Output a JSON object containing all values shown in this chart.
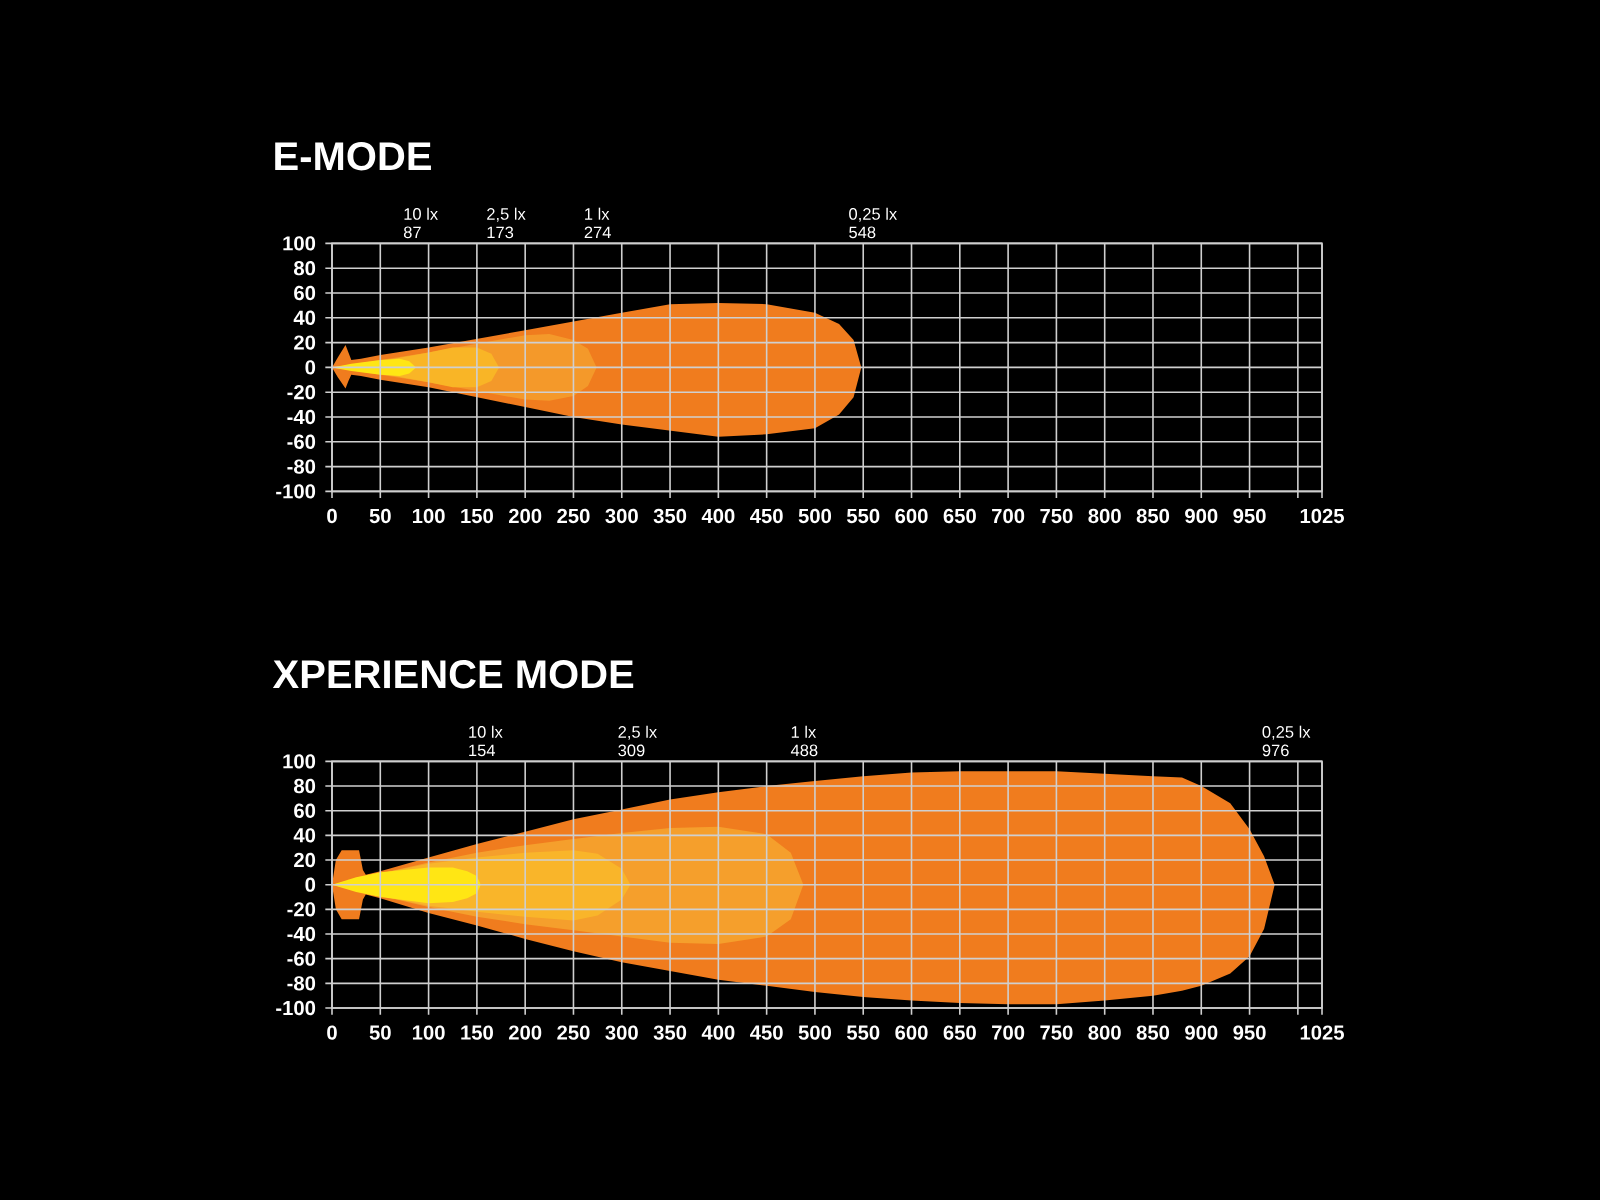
{
  "chart_data": [
    {
      "type": "area",
      "title": "E-MODE",
      "xlim": [
        0,
        1025
      ],
      "ylim": [
        -100,
        100
      ],
      "xticks": [
        0,
        50,
        100,
        150,
        200,
        250,
        300,
        350,
        400,
        450,
        500,
        550,
        600,
        650,
        700,
        750,
        800,
        850,
        900,
        950,
        {
          "value": 1000,
          "label": null
        },
        1025
      ],
      "yticks": [
        -100,
        -80,
        -60,
        -40,
        -20,
        0,
        20,
        40,
        60,
        80,
        100
      ],
      "grid": true,
      "x2lim": [
        0,
        1025
      ],
      "x2ticks": [
        87,
        173,
        274,
        548
      ],
      "annotations": [
        "10 lx",
        "2,5 lx",
        "1 lx",
        "0,25 lx"
      ],
      "series": [
        {
          "color": "#f07c1e",
          "x": [
            0,
            6,
            14,
            17,
            20,
            30,
            50,
            100,
            150,
            200,
            250,
            300,
            350,
            400,
            450,
            500,
            525,
            540,
            548
          ],
          "values": [
            0,
            8,
            18,
            12,
            6,
            7,
            10,
            16,
            23,
            30,
            37,
            44,
            51,
            52,
            51,
            44,
            35,
            22,
            0
          ]
        },
        {
          "color": "#f07c1e",
          "x": [
            0,
            6,
            14,
            17,
            20,
            30,
            50,
            100,
            150,
            200,
            250,
            300,
            350,
            400,
            450,
            500,
            525,
            540,
            548
          ],
          "values": [
            0,
            -8,
            -17,
            -11,
            -6,
            -7,
            -10,
            -16,
            -24,
            -32,
            -40,
            -46,
            -51,
            -56,
            -54,
            -49,
            -38,
            -24,
            0
          ]
        },
        {
          "color": "#f4992a",
          "x": [
            0,
            50,
            100,
            150,
            200,
            225,
            250,
            265,
            274
          ],
          "values": [
            0,
            6,
            12,
            19,
            26,
            27,
            22,
            15,
            0
          ]
        },
        {
          "color": "#f4992a",
          "x": [
            0,
            50,
            100,
            150,
            200,
            225,
            250,
            265,
            274
          ],
          "values": [
            0,
            -6,
            -12,
            -19,
            -26,
            -27,
            -23,
            -15,
            0
          ]
        },
        {
          "color": "#f9b526",
          "x": [
            0,
            50,
            100,
            125,
            150,
            165,
            173
          ],
          "values": [
            0,
            5,
            12,
            16,
            16,
            11,
            0
          ]
        },
        {
          "color": "#f9b526",
          "x": [
            0,
            50,
            100,
            125,
            150,
            165,
            173
          ],
          "values": [
            0,
            -5,
            -12,
            -16,
            -16,
            -11,
            0
          ]
        },
        {
          "color": "#ffe614",
          "x": [
            0,
            20,
            50,
            70,
            80,
            87
          ],
          "values": [
            0,
            3,
            6,
            7,
            5,
            0
          ]
        },
        {
          "color": "#ffe614",
          "x": [
            0,
            20,
            50,
            70,
            80,
            87
          ],
          "values": [
            0,
            -3,
            -6,
            -7,
            -5,
            0
          ]
        }
      ]
    },
    {
      "type": "area",
      "title": "XPERIENCE MODE",
      "xlim": [
        0,
        1025
      ],
      "ylim": [
        -100,
        100
      ],
      "xticks": [
        0,
        50,
        100,
        150,
        200,
        250,
        300,
        350,
        400,
        450,
        500,
        550,
        600,
        650,
        700,
        750,
        800,
        850,
        900,
        950,
        {
          "value": 1000,
          "label": null
        },
        1025
      ],
      "yticks": [
        -100,
        -80,
        -60,
        -40,
        -20,
        0,
        20,
        40,
        60,
        80,
        100
      ],
      "grid": true,
      "x2lim": [
        0,
        1025
      ],
      "x2ticks": [
        154,
        309,
        488,
        976
      ],
      "annotations": [
        "10 lx",
        "2,5 lx",
        "1 lx",
        "0,25 lx"
      ],
      "series": [
        {
          "color": "#f07c1e",
          "x": [
            0,
            4,
            10,
            28,
            32,
            35,
            50,
            100,
            150,
            200,
            250,
            300,
            350,
            400,
            450,
            500,
            550,
            600,
            650,
            700,
            750,
            800,
            850,
            880,
            900,
            930,
            950,
            965,
            976
          ],
          "values": [
            0,
            20,
            28,
            28,
            12,
            8,
            11,
            22,
            33,
            43,
            53,
            61,
            69,
            75,
            80,
            84,
            88,
            91,
            92,
            92,
            92,
            90,
            88,
            87,
            80,
            66,
            45,
            23,
            0
          ]
        },
        {
          "color": "#f07c1e",
          "x": [
            0,
            4,
            10,
            28,
            32,
            35,
            50,
            100,
            150,
            200,
            250,
            300,
            350,
            400,
            450,
            500,
            550,
            600,
            650,
            700,
            750,
            800,
            850,
            880,
            900,
            930,
            950,
            965,
            976
          ],
          "values": [
            0,
            -20,
            -28,
            -28,
            -12,
            -8,
            -11,
            -23,
            -33,
            -44,
            -54,
            -63,
            -70,
            -77,
            -82,
            -87,
            -91,
            -94,
            -96,
            -97,
            -97,
            -94,
            -90,
            -86,
            -82,
            -72,
            -58,
            -36,
            0
          ]
        },
        {
          "color": "#f59f2c",
          "x": [
            0,
            50,
            100,
            150,
            200,
            250,
            300,
            350,
            400,
            450,
            475,
            488
          ],
          "values": [
            0,
            9,
            18,
            26,
            32,
            37,
            42,
            46,
            47,
            41,
            26,
            0
          ]
        },
        {
          "color": "#f59f2c",
          "x": [
            0,
            50,
            100,
            150,
            200,
            250,
            300,
            350,
            400,
            450,
            475,
            488
          ],
          "values": [
            0,
            -9,
            -18,
            -26,
            -32,
            -37,
            -42,
            -47,
            -48,
            -42,
            -28,
            0
          ]
        },
        {
          "color": "#f9b52a",
          "x": [
            0,
            50,
            100,
            150,
            200,
            250,
            275,
            300,
            309
          ],
          "values": [
            0,
            9,
            17,
            22,
            26,
            28,
            25,
            13,
            0
          ]
        },
        {
          "color": "#f9b52a",
          "x": [
            0,
            50,
            100,
            150,
            200,
            250,
            275,
            300,
            309
          ],
          "values": [
            0,
            -9,
            -17,
            -22,
            -26,
            -29,
            -25,
            -12,
            0
          ]
        },
        {
          "color": "#ffe614",
          "x": [
            0,
            25,
            50,
            100,
            125,
            140,
            150,
            154
          ],
          "values": [
            0,
            6,
            10,
            14,
            14,
            11,
            7,
            0
          ]
        },
        {
          "color": "#ffe614",
          "x": [
            0,
            25,
            50,
            100,
            125,
            140,
            150,
            154
          ],
          "values": [
            0,
            -6,
            -10,
            -15,
            -14,
            -11,
            -7,
            0
          ]
        }
      ]
    }
  ]
}
